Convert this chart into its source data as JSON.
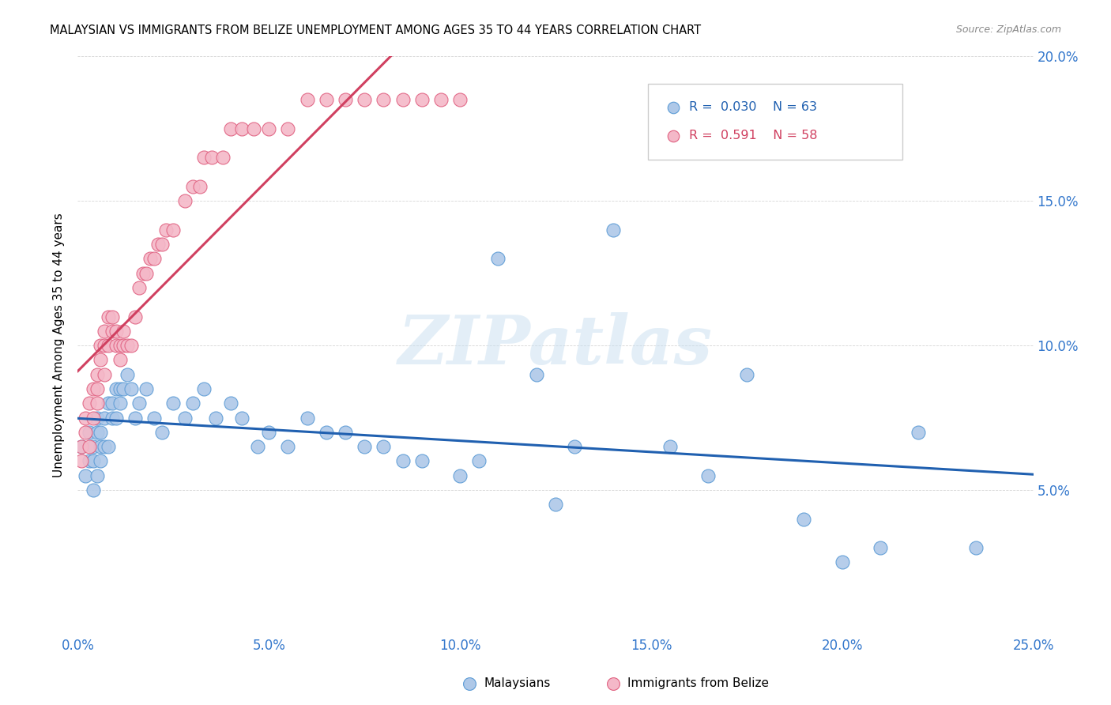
{
  "title": "MALAYSIAN VS IMMIGRANTS FROM BELIZE UNEMPLOYMENT AMONG AGES 35 TO 44 YEARS CORRELATION CHART",
  "source": "Source: ZipAtlas.com",
  "ylabel": "Unemployment Among Ages 35 to 44 years",
  "xlim": [
    0.0,
    0.25
  ],
  "ylim": [
    0.0,
    0.2
  ],
  "xtick_labels": [
    "0.0%",
    "5.0%",
    "10.0%",
    "15.0%",
    "20.0%",
    "25.0%"
  ],
  "ytick_labels_right": [
    "",
    "5.0%",
    "10.0%",
    "15.0%",
    "20.0%"
  ],
  "watermark_text": "ZIPatlas",
  "legend_r1": "R =  0.030",
  "legend_n1": "N = 63",
  "legend_r2": "R =  0.591",
  "legend_n2": "N = 58",
  "blue_fill": "#aec8e8",
  "blue_edge": "#5b9bd5",
  "pink_fill": "#f4b8c8",
  "pink_edge": "#e06080",
  "trendline_blue": "#2060b0",
  "trendline_pink": "#d04060",
  "mal_x": [
    0.001,
    0.002,
    0.003,
    0.003,
    0.004,
    0.004,
    0.004,
    0.005,
    0.005,
    0.005,
    0.006,
    0.006,
    0.006,
    0.007,
    0.007,
    0.008,
    0.008,
    0.009,
    0.009,
    0.01,
    0.01,
    0.011,
    0.011,
    0.012,
    0.013,
    0.014,
    0.015,
    0.016,
    0.018,
    0.02,
    0.022,
    0.025,
    0.028,
    0.03,
    0.033,
    0.036,
    0.04,
    0.043,
    0.047,
    0.05,
    0.055,
    0.06,
    0.065,
    0.07,
    0.075,
    0.08,
    0.085,
    0.09,
    0.1,
    0.105,
    0.11,
    0.12,
    0.125,
    0.13,
    0.14,
    0.155,
    0.165,
    0.175,
    0.19,
    0.2,
    0.21,
    0.22,
    0.235
  ],
  "mal_y": [
    0.065,
    0.055,
    0.06,
    0.07,
    0.05,
    0.06,
    0.065,
    0.055,
    0.07,
    0.075,
    0.065,
    0.06,
    0.07,
    0.075,
    0.065,
    0.065,
    0.08,
    0.075,
    0.08,
    0.085,
    0.075,
    0.08,
    0.085,
    0.085,
    0.09,
    0.085,
    0.075,
    0.08,
    0.085,
    0.075,
    0.07,
    0.08,
    0.075,
    0.08,
    0.085,
    0.075,
    0.08,
    0.075,
    0.065,
    0.07,
    0.065,
    0.075,
    0.07,
    0.07,
    0.065,
    0.065,
    0.06,
    0.06,
    0.055,
    0.06,
    0.13,
    0.09,
    0.045,
    0.065,
    0.14,
    0.065,
    0.055,
    0.09,
    0.04,
    0.025,
    0.03,
    0.07,
    0.03
  ],
  "bel_x": [
    0.001,
    0.001,
    0.002,
    0.002,
    0.003,
    0.003,
    0.004,
    0.004,
    0.005,
    0.005,
    0.005,
    0.006,
    0.006,
    0.007,
    0.007,
    0.007,
    0.008,
    0.008,
    0.009,
    0.009,
    0.01,
    0.01,
    0.011,
    0.011,
    0.012,
    0.012,
    0.013,
    0.014,
    0.015,
    0.016,
    0.017,
    0.018,
    0.019,
    0.02,
    0.021,
    0.022,
    0.023,
    0.025,
    0.028,
    0.03,
    0.032,
    0.033,
    0.035,
    0.038,
    0.04,
    0.043,
    0.046,
    0.05,
    0.055,
    0.06,
    0.065,
    0.07,
    0.075,
    0.08,
    0.085,
    0.09,
    0.095,
    0.1
  ],
  "bel_y": [
    0.06,
    0.065,
    0.07,
    0.075,
    0.065,
    0.08,
    0.075,
    0.085,
    0.08,
    0.085,
    0.09,
    0.1,
    0.095,
    0.09,
    0.1,
    0.105,
    0.1,
    0.11,
    0.11,
    0.105,
    0.105,
    0.1,
    0.1,
    0.095,
    0.1,
    0.105,
    0.1,
    0.1,
    0.11,
    0.12,
    0.125,
    0.125,
    0.13,
    0.13,
    0.135,
    0.135,
    0.14,
    0.14,
    0.15,
    0.155,
    0.155,
    0.165,
    0.165,
    0.165,
    0.175,
    0.175,
    0.175,
    0.175,
    0.175,
    0.185,
    0.185,
    0.185,
    0.185,
    0.185,
    0.185,
    0.185,
    0.185,
    0.185
  ]
}
